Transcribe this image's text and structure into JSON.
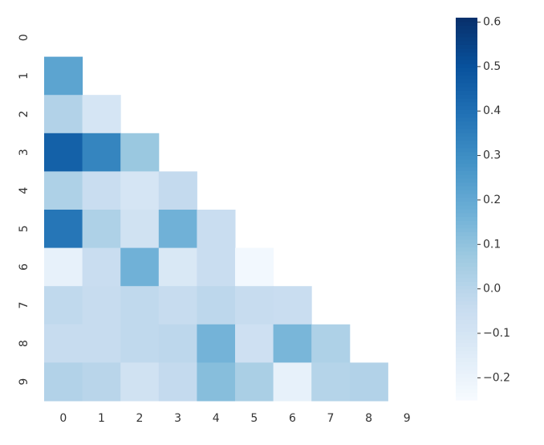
{
  "chart_data": {
    "type": "heatmap",
    "colormap": "Blues",
    "x": [
      "0",
      "1",
      "2",
      "3",
      "4",
      "5",
      "6",
      "7",
      "8",
      "9"
    ],
    "y": [
      "0",
      "1",
      "2",
      "3",
      "4",
      "5",
      "6",
      "7",
      "8",
      "9"
    ],
    "values": [
      [
        null,
        null,
        null,
        null,
        null,
        null,
        null,
        null,
        null,
        null
      ],
      [
        0.22,
        null,
        null,
        null,
        null,
        null,
        null,
        null,
        null,
        null
      ],
      [
        0.02,
        -0.1,
        null,
        null,
        null,
        null,
        null,
        null,
        null,
        null
      ],
      [
        0.45,
        0.33,
        0.08,
        null,
        null,
        null,
        null,
        null,
        null,
        null
      ],
      [
        0.03,
        -0.05,
        -0.1,
        -0.03,
        null,
        null,
        null,
        null,
        null,
        null
      ],
      [
        0.38,
        0.03,
        -0.08,
        0.17,
        -0.05,
        null,
        null,
        null,
        null,
        null
      ],
      [
        -0.18,
        -0.05,
        0.17,
        -0.12,
        -0.05,
        -0.23,
        null,
        null,
        null,
        null
      ],
      [
        -0.02,
        -0.04,
        -0.02,
        -0.04,
        -0.01,
        -0.04,
        -0.05,
        null,
        null,
        null
      ],
      [
        -0.04,
        -0.04,
        -0.02,
        -0.01,
        0.16,
        -0.07,
        0.15,
        0.03,
        null,
        null
      ],
      [
        0.02,
        0.0,
        -0.08,
        -0.03,
        0.12,
        0.04,
        -0.18,
        0.01,
        0.02,
        null
      ]
    ],
    "clim": [
      -0.25,
      0.61
    ],
    "cticks": [
      {
        "value": -0.2,
        "label": "−0.2"
      },
      {
        "value": -0.1,
        "label": "−0.1"
      },
      0.0,
      0.1,
      0.2,
      0.3,
      0.4,
      0.5,
      0.6
    ]
  }
}
